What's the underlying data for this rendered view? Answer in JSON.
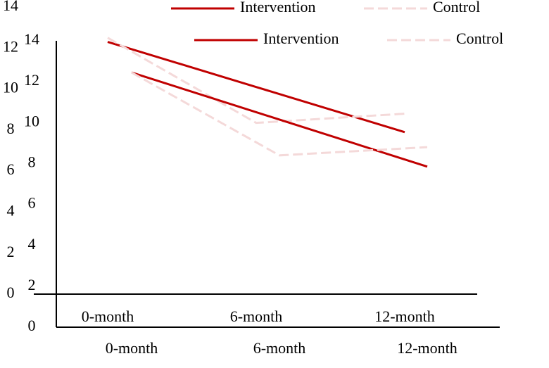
{
  "chart_data": [
    {
      "type": "line",
      "categories": [
        "0-month",
        "6-month",
        "12-month"
      ],
      "series": [
        {
          "name": "Intervention",
          "color": "#c00000",
          "dash": false,
          "values": [
            12.3,
            10.1,
            7.9
          ]
        },
        {
          "name": "Control",
          "color": "#f4d9d9",
          "dash": true,
          "values": [
            12.5,
            8.35,
            8.8
          ]
        }
      ],
      "ylim": [
        0,
        14
      ],
      "yticks": [
        0,
        2,
        4,
        6,
        8,
        10,
        12,
        14
      ],
      "legend": "top"
    },
    {
      "type": "line",
      "categories": [
        "0-month",
        "6-month",
        "12-month"
      ],
      "series": [
        {
          "name": "Intervention",
          "color": "#c00000",
          "dash": false,
          "values": [
            12.45,
            10.15,
            7.85
          ]
        },
        {
          "name": "Control",
          "color": "#f4d9d9",
          "dash": true,
          "values": [
            12.45,
            8.4,
            8.8
          ]
        }
      ],
      "ylim": [
        0,
        14
      ],
      "yticks": [
        0,
        2,
        4,
        6,
        8,
        10,
        12,
        14
      ],
      "legend": "top"
    }
  ]
}
